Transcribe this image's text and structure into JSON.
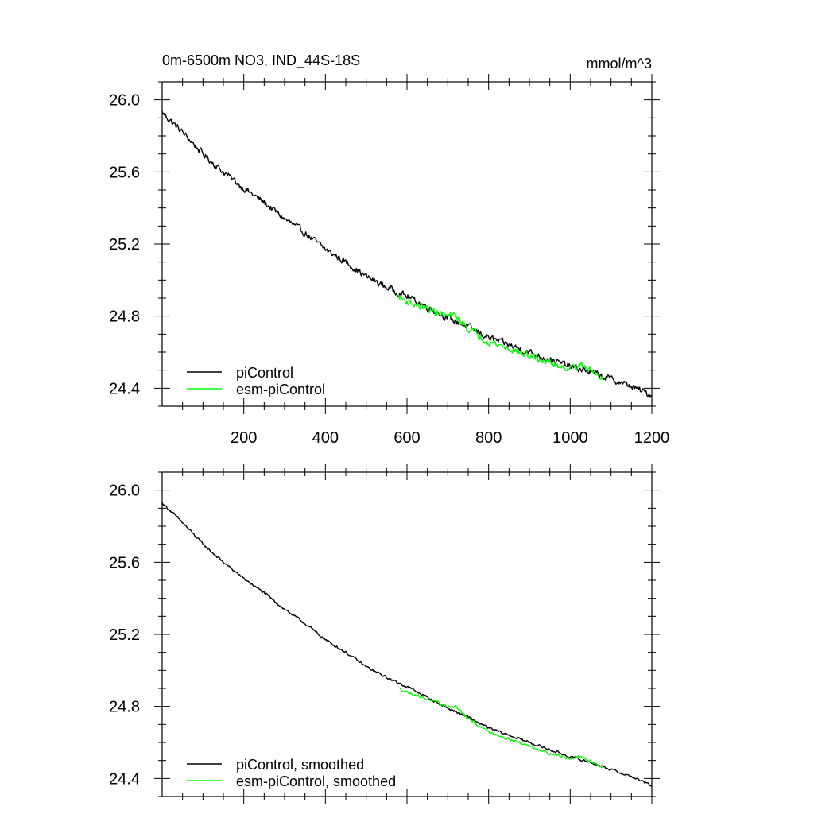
{
  "chart_data": [
    {
      "type": "line",
      "title": "0m-6500m NO3, IND_44S-18S",
      "units": "mmol/m^3",
      "xlabel": "",
      "ylabel": "",
      "xlim": [
        0,
        1200
      ],
      "ylim": [
        24.3,
        26.1
      ],
      "xticks": [
        200,
        400,
        600,
        800,
        1000,
        1200
      ],
      "xtick_labels": [
        "200",
        "400",
        "600",
        "800",
        "1000",
        "1200"
      ],
      "yticks": [
        24.4,
        24.8,
        25.2,
        25.6,
        26.0
      ],
      "ytick_labels": [
        "24.4",
        "24.8",
        "25.2",
        "25.6",
        "26.0"
      ],
      "legend_position": "bottom-left",
      "series": [
        {
          "name": "piControl",
          "color": "#000000",
          "x": [
            0,
            50,
            100,
            150,
            200,
            250,
            300,
            350,
            400,
            450,
            500,
            550,
            600,
            650,
            700,
            750,
            800,
            850,
            900,
            950,
            1000,
            1050,
            1100,
            1150,
            1200
          ],
          "y": [
            25.93,
            25.82,
            25.7,
            25.6,
            25.51,
            25.43,
            25.34,
            25.26,
            25.17,
            25.1,
            25.02,
            24.96,
            24.91,
            24.85,
            24.79,
            24.74,
            24.68,
            24.64,
            24.6,
            24.56,
            24.52,
            24.49,
            24.45,
            24.41,
            24.36
          ],
          "noise": 0.016
        },
        {
          "name": "esm-piControl",
          "color": "#00ff00",
          "x": [
            580,
            600,
            650,
            700,
            720,
            750,
            800,
            850,
            900,
            950,
            1000,
            1020,
            1050,
            1080
          ],
          "y": [
            24.91,
            24.88,
            24.84,
            24.8,
            24.8,
            24.73,
            24.66,
            24.62,
            24.58,
            24.54,
            24.51,
            24.53,
            24.5,
            24.46
          ],
          "noise": 0.018
        }
      ]
    },
    {
      "type": "line",
      "title": "",
      "units": "",
      "xlabel": "",
      "ylabel": "",
      "xlim": [
        0,
        1200
      ],
      "ylim": [
        24.3,
        26.1
      ],
      "xticks": [
        200,
        400,
        600,
        800,
        1000,
        1200
      ],
      "xtick_labels": [],
      "yticks": [
        24.4,
        24.8,
        25.2,
        25.6,
        26.0
      ],
      "ytick_labels": [
        "24.4",
        "24.8",
        "25.2",
        "25.6",
        "26.0"
      ],
      "legend_position": "bottom-left",
      "series": [
        {
          "name": "piControl, smoothed",
          "color": "#000000",
          "x": [
            0,
            50,
            100,
            150,
            200,
            250,
            300,
            350,
            400,
            450,
            500,
            550,
            600,
            650,
            700,
            750,
            800,
            850,
            900,
            950,
            1000,
            1050,
            1100,
            1150,
            1200
          ],
          "y": [
            25.93,
            25.82,
            25.7,
            25.6,
            25.51,
            25.43,
            25.34,
            25.26,
            25.17,
            25.1,
            25.02,
            24.96,
            24.91,
            24.85,
            24.79,
            24.74,
            24.68,
            24.64,
            24.6,
            24.56,
            24.52,
            24.49,
            24.45,
            24.41,
            24.36
          ],
          "noise": 0.006
        },
        {
          "name": "esm-piControl, smoothed",
          "color": "#00ff00",
          "x": [
            580,
            600,
            650,
            700,
            720,
            750,
            800,
            850,
            900,
            950,
            1000,
            1020,
            1050,
            1080
          ],
          "y": [
            24.9,
            24.88,
            24.84,
            24.8,
            24.8,
            24.73,
            24.66,
            24.62,
            24.58,
            24.54,
            24.51,
            24.52,
            24.5,
            24.46
          ],
          "noise": 0.006
        }
      ]
    }
  ]
}
